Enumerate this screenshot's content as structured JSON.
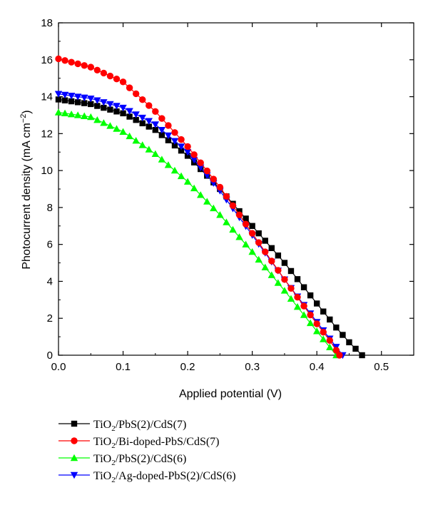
{
  "chart_data": {
    "type": "line",
    "xlabel": "Applied potential (V)",
    "ylabel": "Photocurrent density (mA cm",
    "ylabel_sup": "−2",
    "ylabel_tail": ")",
    "xlim": [
      0.0,
      0.55
    ],
    "ylim": [
      0,
      18
    ],
    "xticks": [
      0.0,
      0.1,
      0.2,
      0.3,
      0.4,
      0.5
    ],
    "xtick_labels": [
      "0.0",
      "0.1",
      "0.2",
      "0.3",
      "0.4",
      "0.5"
    ],
    "yticks": [
      0,
      2,
      4,
      6,
      8,
      10,
      12,
      14,
      16,
      18
    ],
    "ytick_labels": [
      "0",
      "2",
      "4",
      "6",
      "8",
      "10",
      "12",
      "14",
      "16",
      "18"
    ],
    "grid": false,
    "legend_placement": "below",
    "series": [
      {
        "name": "TiO2/PbS(2)/CdS(7)",
        "legend": {
          "pre": "TiO",
          "sub": "2",
          "post": "/PbS(2)/CdS(7)"
        },
        "color": "#000000",
        "marker": "square",
        "x": [
          0.0,
          0.05,
          0.1,
          0.15,
          0.2,
          0.25,
          0.3,
          0.35,
          0.4,
          0.43,
          0.45,
          0.47
        ],
        "y": [
          13.85,
          13.6,
          13.1,
          12.2,
          10.8,
          9.0,
          7.0,
          5.0,
          2.8,
          1.5,
          0.7,
          0.0
        ]
      },
      {
        "name": "TiO2/Bi-doped-PbS/CdS(7)",
        "legend": {
          "pre": "TiO",
          "sub": "2",
          "post": "/Bi-doped-PbS/CdS(7)"
        },
        "color": "#ff0000",
        "marker": "circle",
        "x": [
          0.0,
          0.05,
          0.1,
          0.15,
          0.2,
          0.25,
          0.3,
          0.35,
          0.4,
          0.42,
          0.435
        ],
        "y": [
          16.05,
          15.6,
          14.8,
          13.2,
          11.3,
          9.1,
          6.6,
          4.1,
          1.7,
          0.8,
          0.0
        ]
      },
      {
        "name": "TiO2/PbS(2)/CdS(6)",
        "legend": {
          "pre": "TiO",
          "sub": "2",
          "post": "/PbS(2)/CdS(6)"
        },
        "color": "#00ff00",
        "marker": "triangle-up",
        "x": [
          0.0,
          0.05,
          0.1,
          0.15,
          0.2,
          0.25,
          0.3,
          0.35,
          0.4,
          0.43
        ],
        "y": [
          13.15,
          12.9,
          12.1,
          10.9,
          9.4,
          7.6,
          5.6,
          3.5,
          1.3,
          0.0
        ]
      },
      {
        "name": "TiO2/Ag-doped-PbS(2)/CdS(6)",
        "legend": {
          "pre": "TiO",
          "sub": "2",
          "post": "/Ag-doped-PbS(2)/CdS(6)"
        },
        "color": "#0000ff",
        "marker": "triangle-down",
        "x": [
          0.0,
          0.05,
          0.1,
          0.15,
          0.2,
          0.25,
          0.3,
          0.35,
          0.4,
          0.42,
          0.44
        ],
        "y": [
          14.15,
          13.9,
          13.4,
          12.5,
          11.0,
          8.9,
          6.5,
          4.1,
          1.8,
          0.9,
          0.0
        ]
      }
    ]
  }
}
